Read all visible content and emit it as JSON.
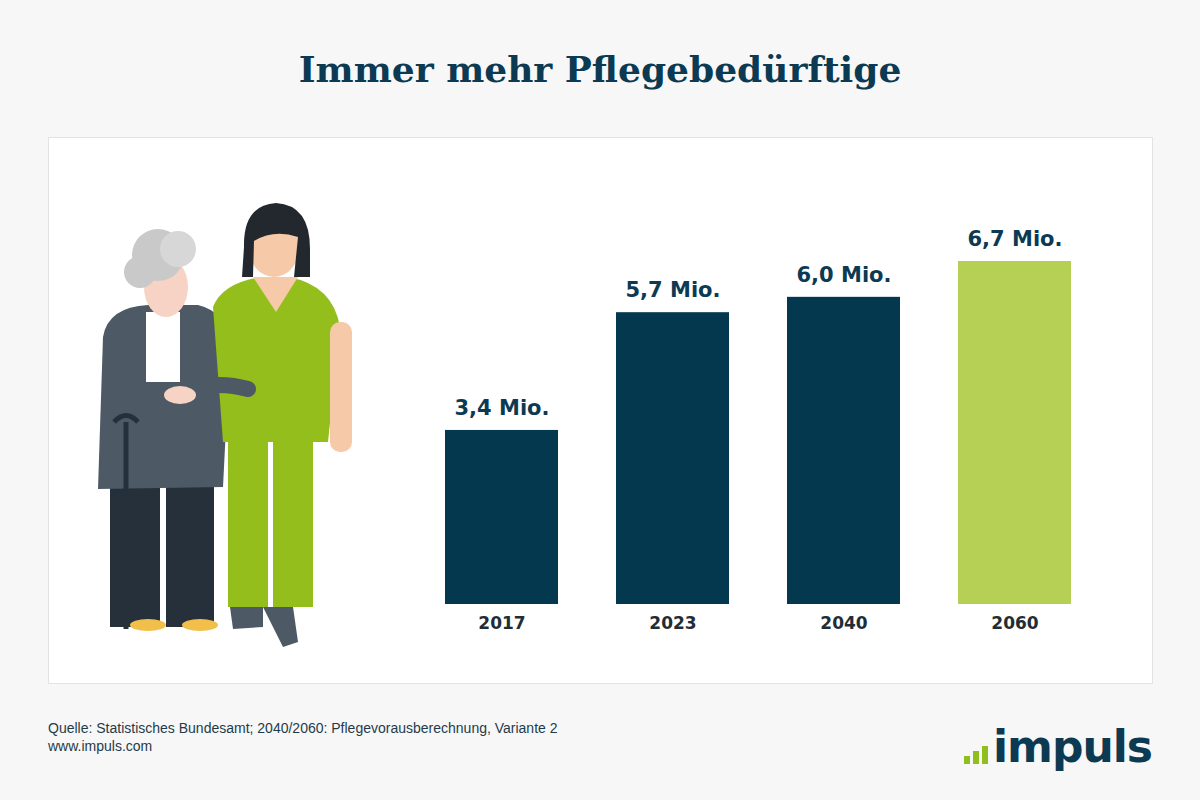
{
  "chart_data": {
    "type": "bar",
    "title": "Immer mehr Pflegebedürftige",
    "categories": [
      "2017",
      "2023",
      "2040",
      "2060"
    ],
    "values": [
      3.4,
      5.7,
      6.0,
      6.7
    ],
    "value_labels": [
      "3,4 Mio.",
      "5,7 Mio.",
      "6,0 Mio.",
      "6,7 Mio."
    ],
    "colors": [
      "#03384f",
      "#03384f",
      "#03384f",
      "#b5d055"
    ],
    "data_labels": true,
    "tick_labels": "x",
    "caption": [
      "Quelle: Statistisches Bundesamt; 2040/2060: Pflegevorausberechnung, Variante 2",
      "www.impuls.com"
    ],
    "logo": "impuls"
  }
}
